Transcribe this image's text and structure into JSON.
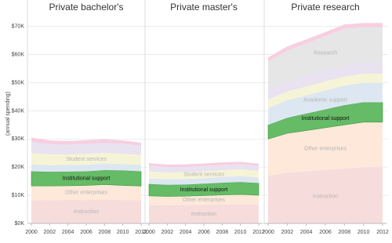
{
  "chart_data": [
    {
      "type": "stacked-area",
      "title": "Private bachelor's",
      "y_label": "(annual spending)",
      "ylim": [
        0,
        78000
      ],
      "yticks": [
        {
          "value": 0,
          "label": "$0K"
        },
        {
          "value": 10000,
          "label": "$10K"
        },
        {
          "value": 20000,
          "label": "$20K"
        },
        {
          "value": 30000,
          "label": "$30K"
        },
        {
          "value": 40000,
          "label": "$40K"
        },
        {
          "value": 50000,
          "label": "$50K"
        },
        {
          "value": 60000,
          "label": "$60K"
        },
        {
          "value": 70000,
          "label": "$70K"
        }
      ],
      "grid": true,
      "xlim": [
        2000,
        2012
      ],
      "xticks": [
        2000,
        2002,
        2004,
        2006,
        2008,
        2010,
        2012
      ],
      "x": [
        2000,
        2002,
        2004,
        2006,
        2008,
        2010,
        2012
      ],
      "series": [
        {
          "name": "Instruction",
          "color": "#f7dcdc",
          "values": [
            8300,
            8200,
            8400,
            8300,
            8500,
            8300,
            8200
          ]
        },
        {
          "name": "Other enterprises",
          "color": "#fde8da",
          "values": [
            5000,
            5100,
            5000,
            5200,
            5300,
            5200,
            5100
          ]
        },
        {
          "name": "Institutional support",
          "color": "#66bb66",
          "values": [
            5200,
            5000,
            5000,
            5000,
            5100,
            5300,
            5200
          ]
        },
        {
          "color": "#dde7f2",
          "values": [
            2500,
            2400,
            2400,
            2400,
            2400,
            2300,
            2300
          ]
        },
        {
          "name": "Student services",
          "color": "#f6f4d6",
          "values": [
            4000,
            3800,
            3700,
            3800,
            3800,
            3600,
            3500
          ]
        },
        {
          "color": "#e9e2f0",
          "values": [
            4000,
            3600,
            3500,
            3600,
            3500,
            3600,
            3300
          ]
        },
        {
          "color": "#f6cfe0",
          "values": [
            1500,
            1400,
            1300,
            1300,
            1300,
            1200,
            1100
          ]
        }
      ]
    },
    {
      "type": "stacked-area",
      "title": "Private master's",
      "xlim": [
        2000,
        2012
      ],
      "xticks": [
        2000,
        2002,
        2004,
        2006,
        2008,
        2010,
        2012
      ],
      "x": [
        2000,
        2002,
        2004,
        2006,
        2008,
        2010,
        2012
      ],
      "series": [
        {
          "name": "Instruction",
          "color": "#f7dcdc",
          "values": [
            6500,
            6400,
            6500,
            6600,
            6700,
            6800,
            6600
          ]
        },
        {
          "name": "Other enterprises",
          "color": "#fde8da",
          "values": [
            3300,
            3200,
            3200,
            3300,
            3400,
            3500,
            3400
          ]
        },
        {
          "name": "Institutional support",
          "color": "#66bb66",
          "values": [
            4200,
            4100,
            4100,
            4200,
            4300,
            4400,
            4300
          ]
        },
        {
          "color": "#dde7f2",
          "values": [
            2000,
            2000,
            2000,
            2000,
            2100,
            2100,
            2000
          ]
        },
        {
          "name": "Student services",
          "color": "#f6f4d6",
          "values": [
            2500,
            2400,
            2400,
            2400,
            2400,
            2400,
            2300
          ]
        },
        {
          "color": "#e9e2f0",
          "values": [
            2000,
            1900,
            1900,
            1900,
            1900,
            1800,
            1800
          ]
        },
        {
          "color": "#f6cfe0",
          "values": [
            900,
            900,
            900,
            900,
            900,
            900,
            800
          ]
        }
      ]
    },
    {
      "type": "stacked-area",
      "title": "Private research",
      "xlim": [
        2000,
        2012
      ],
      "xticks": [
        2000,
        2002,
        2004,
        2006,
        2008,
        2010,
        2012
      ],
      "x": [
        2000,
        2002,
        2004,
        2006,
        2008,
        2010,
        2012
      ],
      "series": [
        {
          "name": "Instruction",
          "color": "#f7dcdc",
          "values": [
            17000,
            18000,
            18500,
            19000,
            19500,
            20000,
            20000
          ]
        },
        {
          "name": "Other enterprises",
          "color": "#fde8da",
          "values": [
            13000,
            14000,
            14500,
            15000,
            15500,
            16000,
            16000
          ]
        },
        {
          "name": "Institutional support",
          "color": "#66bb66",
          "values": [
            5000,
            5500,
            6000,
            6500,
            7000,
            7000,
            7000
          ]
        },
        {
          "name": "Academic support",
          "color": "#dde7f2",
          "values": [
            6000,
            6300,
            6500,
            6800,
            7000,
            7000,
            7000
          ]
        },
        {
          "color": "#f6f4d6",
          "values": [
            3000,
            3000,
            3100,
            3200,
            3200,
            3200,
            3200
          ]
        },
        {
          "color": "#e9e2f0",
          "values": [
            3500,
            3600,
            3800,
            4000,
            4000,
            4000,
            4000
          ]
        },
        {
          "name": "Research",
          "color": "#e6e6e6",
          "values": [
            10000,
            11000,
            11500,
            12000,
            13000,
            12500,
            12500
          ]
        },
        {
          "color": "#f6cfe0",
          "values": [
            1500,
            1500,
            1500,
            1500,
            1500,
            1500,
            1500
          ]
        }
      ]
    }
  ]
}
